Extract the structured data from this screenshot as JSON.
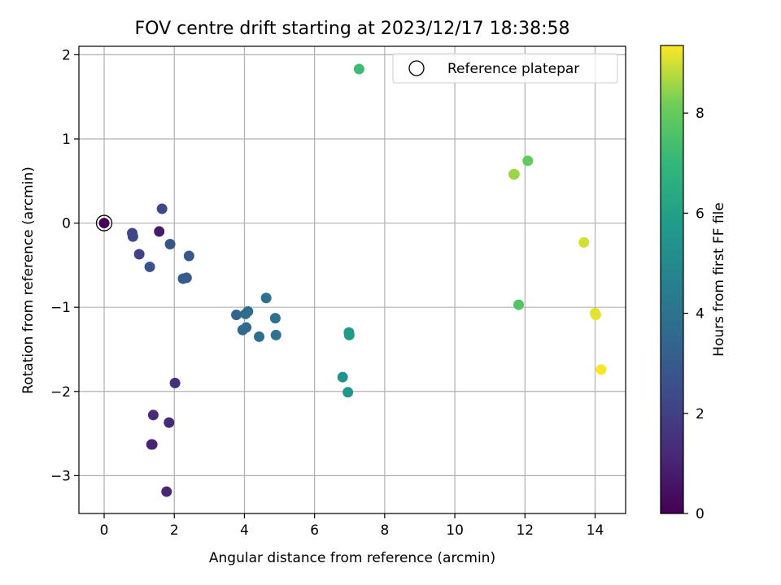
{
  "chart_data": {
    "type": "scatter",
    "title": "FOV centre drift starting at 2023/12/17 18:38:58",
    "xlabel": "Angular distance from reference (arcmin)",
    "ylabel": "Rotation from reference (arcmin)",
    "xlim": [
      -0.72,
      14.87
    ],
    "ylim": [
      -3.45,
      2.1
    ],
    "x_ticks": [
      0,
      2,
      4,
      6,
      8,
      10,
      12,
      14
    ],
    "y_ticks": [
      -3,
      -2,
      -1,
      0,
      1,
      2
    ],
    "grid": true,
    "legend": {
      "placement": "upper right",
      "entries": [
        "Reference platepar"
      ]
    },
    "colorbar": {
      "label": "Hours from first FF file",
      "range": [
        0,
        9.35
      ],
      "ticks": [
        0,
        2,
        4,
        6,
        8
      ],
      "colormap": "viridis"
    },
    "reference_point": {
      "x": 0,
      "y": 0
    },
    "points": [
      {
        "x": 0.0,
        "y": 0.0,
        "hours": 0.0
      },
      {
        "x": 1.57,
        "y": -0.1,
        "hours": 0.8
      },
      {
        "x": 1.35,
        "y": -2.63,
        "hours": 1.0
      },
      {
        "x": 1.37,
        "y": -2.63,
        "hours": 1.05
      },
      {
        "x": 1.78,
        "y": -3.19,
        "hours": 1.1
      },
      {
        "x": 1.85,
        "y": -2.37,
        "hours": 1.2
      },
      {
        "x": 1.4,
        "y": -2.28,
        "hours": 1.3
      },
      {
        "x": 2.02,
        "y": -1.9,
        "hours": 1.45
      },
      {
        "x": 1.0,
        "y": -0.37,
        "hours": 2.1
      },
      {
        "x": 0.8,
        "y": -0.12,
        "hours": 2.2
      },
      {
        "x": 0.82,
        "y": -0.16,
        "hours": 2.25
      },
      {
        "x": 1.65,
        "y": 0.17,
        "hours": 2.3
      },
      {
        "x": 1.3,
        "y": -0.52,
        "hours": 2.6
      },
      {
        "x": 1.88,
        "y": -0.25,
        "hours": 2.8
      },
      {
        "x": 2.42,
        "y": -0.39,
        "hours": 2.9
      },
      {
        "x": 2.25,
        "y": -0.66,
        "hours": 3.0
      },
      {
        "x": 2.35,
        "y": -0.65,
        "hours": 3.05
      },
      {
        "x": 3.77,
        "y": -1.09,
        "hours": 3.4
      },
      {
        "x": 3.95,
        "y": -1.27,
        "hours": 3.5
      },
      {
        "x": 4.05,
        "y": -1.24,
        "hours": 3.6
      },
      {
        "x": 4.03,
        "y": -1.08,
        "hours": 3.7
      },
      {
        "x": 4.1,
        "y": -1.05,
        "hours": 3.75
      },
      {
        "x": 4.42,
        "y": -1.35,
        "hours": 3.8
      },
      {
        "x": 4.62,
        "y": -0.89,
        "hours": 3.85
      },
      {
        "x": 4.88,
        "y": -1.13,
        "hours": 3.9
      },
      {
        "x": 4.9,
        "y": -1.33,
        "hours": 3.95
      },
      {
        "x": 6.8,
        "y": -1.83,
        "hours": 5.4
      },
      {
        "x": 6.95,
        "y": -2.01,
        "hours": 5.5
      },
      {
        "x": 6.98,
        "y": -1.3,
        "hours": 5.7
      },
      {
        "x": 6.99,
        "y": -1.33,
        "hours": 5.75
      },
      {
        "x": 7.27,
        "y": 1.83,
        "hours": 7.2
      },
      {
        "x": 11.82,
        "y": -0.97,
        "hours": 7.6
      },
      {
        "x": 12.08,
        "y": 0.74,
        "hours": 8.0
      },
      {
        "x": 11.68,
        "y": 0.58,
        "hours": 8.5
      },
      {
        "x": 11.7,
        "y": 0.58,
        "hours": 8.55
      },
      {
        "x": 13.68,
        "y": -0.23,
        "hours": 9.0
      },
      {
        "x": 14.0,
        "y": -1.07,
        "hours": 9.1
      },
      {
        "x": 14.02,
        "y": -1.09,
        "hours": 9.15
      },
      {
        "x": 14.17,
        "y": -1.74,
        "hours": 9.3
      }
    ]
  }
}
